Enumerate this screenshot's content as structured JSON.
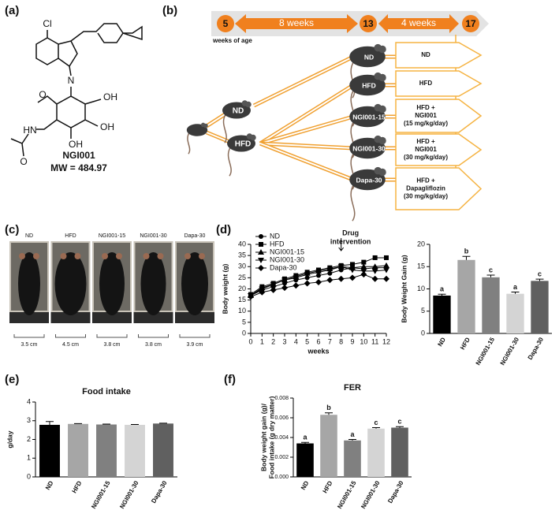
{
  "panels": [
    "(a)",
    "(b)",
    "(c)",
    "(d)",
    "(e)",
    "(f)"
  ],
  "structure": {
    "atoms": [
      "Cl",
      "N",
      "O",
      "HN",
      "O",
      "OH",
      "OH",
      "OH"
    ],
    "name": "NGI001",
    "mw": "MW = 484.97"
  },
  "timeline": {
    "ages": [
      "5",
      "13",
      "17"
    ],
    "durations": [
      "8 weeks",
      "4 weeks"
    ],
    "caption": "weeks of age"
  },
  "diet_mice": [
    "ND",
    "HFD"
  ],
  "groups": {
    "mice": [
      "ND",
      "HFD",
      "NGI001-15",
      "NGI001-30",
      "Dapa-30"
    ],
    "boxes": [
      [
        "ND"
      ],
      [
        "HFD"
      ],
      [
        "HFD +",
        "NGI001",
        "(15 mg/kg/day)"
      ],
      [
        "HFD +",
        "NGI001",
        "(30 mg/kg/day)"
      ],
      [
        "HFD +",
        "Dapagliflozin",
        "(30 mg/kg/day)"
      ]
    ]
  },
  "photos": {
    "names": [
      "ND",
      "HFD",
      "NGI001-15",
      "NGI001-30",
      "Dapa-30"
    ],
    "widths": [
      "3.5 cm",
      "4.5 cm",
      "3.8 cm",
      "3.8 cm",
      "3.9 cm"
    ]
  },
  "chart_data": [
    {
      "type": "line",
      "x_label": "weeks",
      "y_label": "Body weight (g)",
      "x": [
        0,
        1,
        2,
        3,
        4,
        5,
        6,
        7,
        8,
        9,
        10,
        11,
        12
      ],
      "xlim": [
        0,
        12
      ],
      "xticks": [
        0,
        1,
        2,
        3,
        4,
        5,
        6,
        7,
        8,
        9,
        10,
        11,
        12
      ],
      "ylim": [
        0,
        40
      ],
      "yticks": [
        0,
        5,
        10,
        15,
        20,
        25,
        30,
        35,
        40
      ],
      "annotation": [
        "Drug",
        "intervention"
      ],
      "annotation_x": 8,
      "series": [
        {
          "name": "ND",
          "color": "#000000",
          "marker": "circle",
          "values": [
            17,
            19.5,
            21,
            22.5,
            24,
            25,
            26,
            27,
            28.5,
            29.5,
            29,
            29.5,
            29.5
          ]
        },
        {
          "name": "HFD",
          "color": "#000000",
          "marker": "square",
          "values": [
            17.5,
            21,
            22.5,
            24.5,
            26,
            27.5,
            28.5,
            29.5,
            30.5,
            31,
            32,
            34,
            34
          ]
        },
        {
          "name": "NGI001-15",
          "color": "#000000",
          "marker": "triangle-up",
          "values": [
            17,
            20.5,
            22,
            24,
            25.5,
            27,
            28,
            29,
            30,
            29.5,
            30,
            30,
            30.5
          ]
        },
        {
          "name": "NGI001-30",
          "color": "#000000",
          "marker": "triangle-down",
          "values": [
            17,
            20,
            22,
            24,
            25,
            26.5,
            27.5,
            28.5,
            30,
            28.5,
            28,
            28,
            28.5
          ]
        },
        {
          "name": "Dapa-30",
          "color": "#000000",
          "marker": "diamond",
          "values": [
            16.5,
            18.5,
            19.5,
            20.5,
            21.5,
            22.5,
            23,
            24,
            24.5,
            25,
            26.5,
            24.5,
            24.5
          ]
        }
      ]
    },
    {
      "type": "bar",
      "y_label": "Body Weight Gain (g)",
      "categories": [
        "ND",
        "HFD",
        "NGI001-15",
        "NGI001-30",
        "Dapa-30"
      ],
      "values": [
        8.5,
        16.5,
        12.6,
        8.9,
        11.8
      ],
      "errors": [
        0.3,
        0.8,
        0.5,
        0.4,
        0.4
      ],
      "annotations": [
        "a",
        "b",
        "c",
        "a",
        "c"
      ],
      "colors": [
        "#000000",
        "#a6a6a6",
        "#808080",
        "#d4d4d4",
        "#606060"
      ],
      "ylim": [
        0,
        20
      ],
      "yticks": [
        0,
        5,
        10,
        15,
        20
      ]
    },
    {
      "type": "bar",
      "title": "Food intake",
      "y_label": "g/day",
      "categories": [
        "ND",
        "HFD",
        "NGI001-15",
        "NGI001-30",
        "Dapa-30"
      ],
      "values": [
        2.78,
        2.83,
        2.8,
        2.78,
        2.85
      ],
      "errors": [
        0.18,
        0.02,
        0.02,
        0.02,
        0.02
      ],
      "colors": [
        "#000000",
        "#a6a6a6",
        "#808080",
        "#d4d4d4",
        "#606060"
      ],
      "ylim": [
        0,
        4
      ],
      "yticks": [
        0,
        1,
        2,
        3,
        4
      ]
    },
    {
      "type": "bar",
      "title": "FER",
      "y_label": [
        "Body weight gain (g)/",
        "Food intake (g dry matter)"
      ],
      "categories": [
        "ND",
        "HFD",
        "NGI001-15",
        "NGI001-30",
        "Dapa-30"
      ],
      "values": [
        0.0034,
        0.0063,
        0.0037,
        0.0049,
        0.005
      ],
      "errors": [
        0.0001,
        0.0002,
        0.0001,
        0.0001,
        0.0001
      ],
      "annotations": [
        "a",
        "b",
        "a",
        "c",
        "c"
      ],
      "colors": [
        "#000000",
        "#a6a6a6",
        "#808080",
        "#d4d4d4",
        "#606060"
      ],
      "ylim": [
        0,
        0.008
      ],
      "yticks": [
        {
          "value": 0,
          "label": "0.000"
        },
        {
          "value": 0.002,
          "label": "0.002"
        },
        {
          "value": 0.004,
          "label": "0.004"
        },
        {
          "value": 0.006,
          "label": "0.006"
        },
        {
          "value": 0.008,
          "label": "0.008"
        }
      ]
    }
  ]
}
